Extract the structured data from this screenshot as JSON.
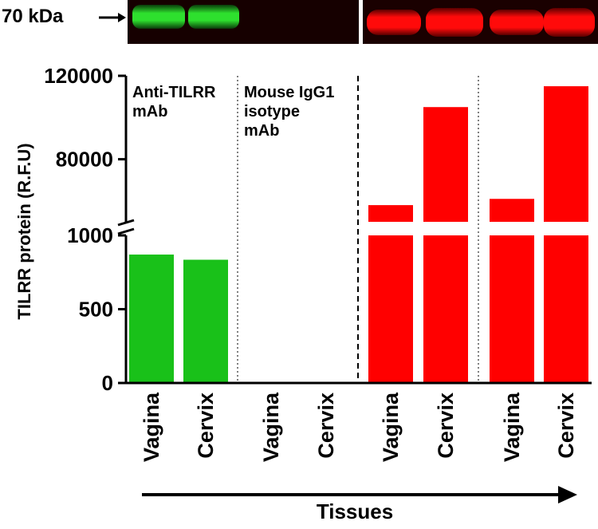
{
  "chart_data": {
    "type": "bar",
    "blot_label": "70 kDa",
    "ylabel": "TILRR protein (R.F.U)",
    "xlabel": "Tissues",
    "ylim_lower": [
      0,
      1000
    ],
    "ylim_upper": [
      50000,
      120000
    ],
    "yticks_lower": [
      "0",
      "500",
      "1000"
    ],
    "yticks_upper": [
      "80000",
      "120000"
    ],
    "categories": [
      "Vagina",
      "Cervix",
      "Vagina",
      "Cervix",
      "Vagina",
      "Cervix",
      "Vagina",
      "Cervix"
    ],
    "values": [
      870,
      835,
      0,
      0,
      58000,
      105000,
      61000,
      115000
    ],
    "bar_colors": [
      "#19c119",
      "#19c119",
      "#ff0000",
      "#ff0000",
      "#ff0000",
      "#ff0000",
      "#ff0000",
      "#ff0000"
    ],
    "annotations": [
      {
        "lines": [
          "Anti-TILRR",
          "mAb"
        ]
      },
      {
        "lines": [
          "Mouse IgG1",
          "isotype",
          "mAb"
        ]
      }
    ]
  }
}
